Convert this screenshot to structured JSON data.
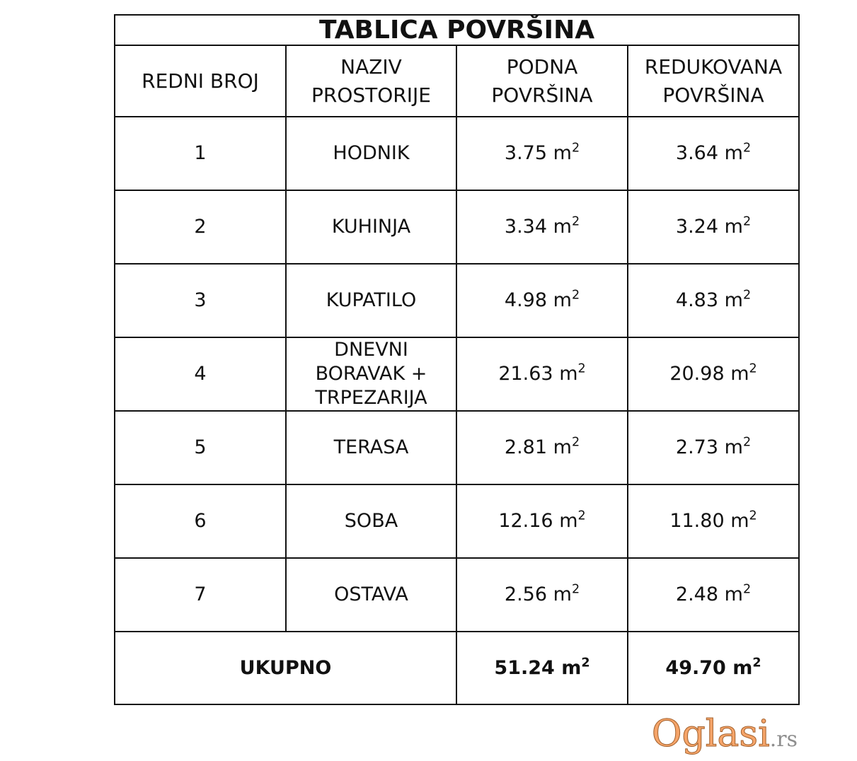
{
  "title": "TABLICA POVRŠINA",
  "headers": {
    "no": "REDNI BROJ",
    "name_1": "NAZIV",
    "name_2": "PROSTORIJE",
    "floor_1": "PODNA",
    "floor_2": "POVRŠINA",
    "reduced_1": "REDUKOVANA",
    "reduced_2": "POVRŠINA"
  },
  "unit": "m",
  "unit_exp": "2",
  "rows": [
    {
      "no": "1",
      "name": "HODNIK",
      "floor": "3.75",
      "reduced": "3.64"
    },
    {
      "no": "2",
      "name": "KUHINJA",
      "floor": "3.34",
      "reduced": "3.24"
    },
    {
      "no": "3",
      "name": "KUPATILO",
      "floor": "4.98",
      "reduced": "4.83"
    },
    {
      "no": "4",
      "name": "DNEVNI BORAVAK + TRPEZARIJA",
      "floor": "21.63",
      "reduced": "20.98"
    },
    {
      "no": "5",
      "name": "TERASA",
      "floor": "2.81",
      "reduced": "2.73"
    },
    {
      "no": "6",
      "name": "SOBA",
      "floor": "12.16",
      "reduced": "11.80"
    },
    {
      "no": "7",
      "name": "OSTAVA",
      "floor": "2.56",
      "reduced": "2.48"
    }
  ],
  "total": {
    "label": "UKUPNO",
    "floor": "51.24",
    "reduced": "49.70"
  },
  "watermark": {
    "name": "Oglasi",
    "tld": ".rs",
    "color": "#f5a469"
  }
}
